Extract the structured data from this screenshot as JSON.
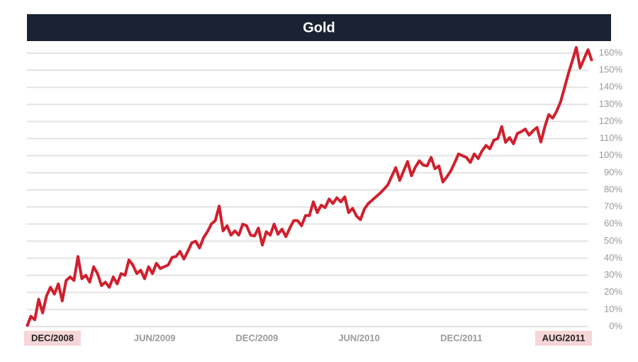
{
  "chart_data": {
    "type": "line",
    "title": "Gold",
    "x_labels": [
      "DEC/2008",
      "JUN/2009",
      "DEC/2009",
      "JUN/2010",
      "DEC/2011",
      "AUG/2011"
    ],
    "color": "#d0202e",
    "ylim": [
      0,
      160
    ],
    "yticks": [
      {
        "value": 0,
        "label": "0%"
      },
      {
        "value": 10,
        "label": "10%"
      },
      {
        "value": 20,
        "label": "20%"
      },
      {
        "value": 30,
        "label": "30%"
      },
      {
        "value": 40,
        "label": "40%"
      },
      {
        "value": 50,
        "label": "50%"
      },
      {
        "value": 60,
        "label": "60%"
      },
      {
        "value": 70,
        "label": "70%"
      },
      {
        "value": 80,
        "label": "80%"
      },
      {
        "value": 90,
        "label": "90%"
      },
      {
        "value": 100,
        "label": "100%"
      },
      {
        "value": 110,
        "label": "110%"
      },
      {
        "value": 120,
        "label": "120%"
      },
      {
        "value": 130,
        "label": "130%"
      },
      {
        "value": 140,
        "label": "140%"
      },
      {
        "value": 150,
        "label": "150%"
      },
      {
        "value": 160,
        "label": "160%"
      }
    ],
    "grid": true,
    "values": [
      0,
      6,
      4,
      16,
      8,
      18,
      23,
      19,
      25,
      15,
      27,
      29,
      27,
      41,
      28,
      30,
      26,
      35,
      31,
      24,
      26,
      23,
      29,
      25,
      31,
      30,
      39,
      36,
      31,
      33,
      28,
      35,
      31,
      37,
      34,
      35,
      36,
      40.5,
      41,
      44,
      39.5,
      44,
      49,
      50,
      46,
      52,
      55.5,
      60,
      62,
      70.5,
      56,
      59,
      53.5,
      56,
      53.5,
      60,
      59,
      53.5,
      53,
      57.6,
      47.7,
      55.5,
      53.5,
      60,
      54,
      57,
      52.6,
      57.6,
      62,
      62,
      59,
      65,
      65,
      73,
      66.7,
      71,
      69.6,
      74.6,
      72,
      75.4,
      73,
      75.9,
      66.7,
      69.2,
      64.7,
      62.6,
      68.8,
      72,
      74,
      76,
      78,
      80.4,
      83,
      88,
      93,
      85.5,
      91,
      96.6,
      88.3,
      93.3,
      97,
      94.5,
      94,
      99,
      92.4,
      94,
      84.6,
      87.5,
      91,
      95.8,
      101,
      100,
      99,
      96,
      101,
      98.3,
      102.8,
      106,
      104,
      109,
      110,
      117,
      107.8,
      110.6,
      107,
      113,
      114,
      115.6,
      112,
      114.6,
      116.5,
      108,
      117,
      124,
      122,
      126,
      131.4,
      139.7,
      148,
      155.4,
      163.3,
      151.3,
      156.7,
      162,
      155.4
    ]
  }
}
